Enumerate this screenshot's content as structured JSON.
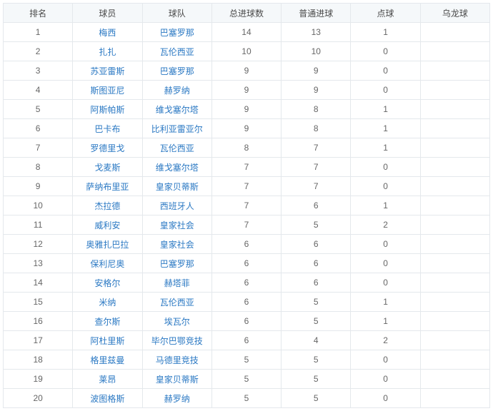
{
  "table": {
    "headers": [
      "排名",
      "球员",
      "球队",
      "总进球数",
      "普通进球",
      "点球",
      "乌龙球"
    ],
    "header_bg": "#f5f8fa",
    "border_color": "#e4e8ec",
    "link_color": "#2a78c3",
    "text_color": "#666666",
    "fontsize": 12,
    "rows": [
      {
        "rank": "1",
        "player": "梅西",
        "team": "巴塞罗那",
        "total": "14",
        "normal": "13",
        "pk": "1",
        "og": ""
      },
      {
        "rank": "2",
        "player": "扎扎",
        "team": "瓦伦西亚",
        "total": "10",
        "normal": "10",
        "pk": "0",
        "og": ""
      },
      {
        "rank": "3",
        "player": "苏亚雷斯",
        "team": "巴塞罗那",
        "total": "9",
        "normal": "9",
        "pk": "0",
        "og": ""
      },
      {
        "rank": "4",
        "player": "斯图亚尼",
        "team": "赫罗纳",
        "total": "9",
        "normal": "9",
        "pk": "0",
        "og": ""
      },
      {
        "rank": "5",
        "player": "阿斯帕斯",
        "team": "维戈塞尔塔",
        "total": "9",
        "normal": "8",
        "pk": "1",
        "og": ""
      },
      {
        "rank": "6",
        "player": "巴卡布",
        "team": "比利亚雷亚尔",
        "total": "9",
        "normal": "8",
        "pk": "1",
        "og": ""
      },
      {
        "rank": "7",
        "player": "罗德里戈",
        "team": "瓦伦西亚",
        "total": "8",
        "normal": "7",
        "pk": "1",
        "og": ""
      },
      {
        "rank": "8",
        "player": "戈麦斯",
        "team": "维戈塞尔塔",
        "total": "7",
        "normal": "7",
        "pk": "0",
        "og": ""
      },
      {
        "rank": "9",
        "player": "萨纳布里亚",
        "team": "皇家贝蒂斯",
        "total": "7",
        "normal": "7",
        "pk": "0",
        "og": ""
      },
      {
        "rank": "10",
        "player": "杰拉德",
        "team": "西班牙人",
        "total": "7",
        "normal": "6",
        "pk": "1",
        "og": ""
      },
      {
        "rank": "11",
        "player": "威利安",
        "team": "皇家社会",
        "total": "7",
        "normal": "5",
        "pk": "2",
        "og": ""
      },
      {
        "rank": "12",
        "player": "奥雅扎巴拉",
        "team": "皇家社会",
        "total": "6",
        "normal": "6",
        "pk": "0",
        "og": ""
      },
      {
        "rank": "13",
        "player": "保利尼奥",
        "team": "巴塞罗那",
        "total": "6",
        "normal": "6",
        "pk": "0",
        "og": ""
      },
      {
        "rank": "14",
        "player": "安格尔",
        "team": "赫塔菲",
        "total": "6",
        "normal": "6",
        "pk": "0",
        "og": ""
      },
      {
        "rank": "15",
        "player": "米纳",
        "team": "瓦伦西亚",
        "total": "6",
        "normal": "5",
        "pk": "1",
        "og": ""
      },
      {
        "rank": "16",
        "player": "查尔斯",
        "team": "埃瓦尔",
        "total": "6",
        "normal": "5",
        "pk": "1",
        "og": ""
      },
      {
        "rank": "17",
        "player": "阿杜里斯",
        "team": "毕尔巴鄂竞技",
        "total": "6",
        "normal": "4",
        "pk": "2",
        "og": ""
      },
      {
        "rank": "18",
        "player": "格里兹曼",
        "team": "马德里竞技",
        "total": "5",
        "normal": "5",
        "pk": "0",
        "og": ""
      },
      {
        "rank": "19",
        "player": "莱昂",
        "team": "皇家贝蒂斯",
        "total": "5",
        "normal": "5",
        "pk": "0",
        "og": ""
      },
      {
        "rank": "20",
        "player": "波图格斯",
        "team": "赫罗纳",
        "total": "5",
        "normal": "5",
        "pk": "0",
        "og": ""
      }
    ]
  }
}
